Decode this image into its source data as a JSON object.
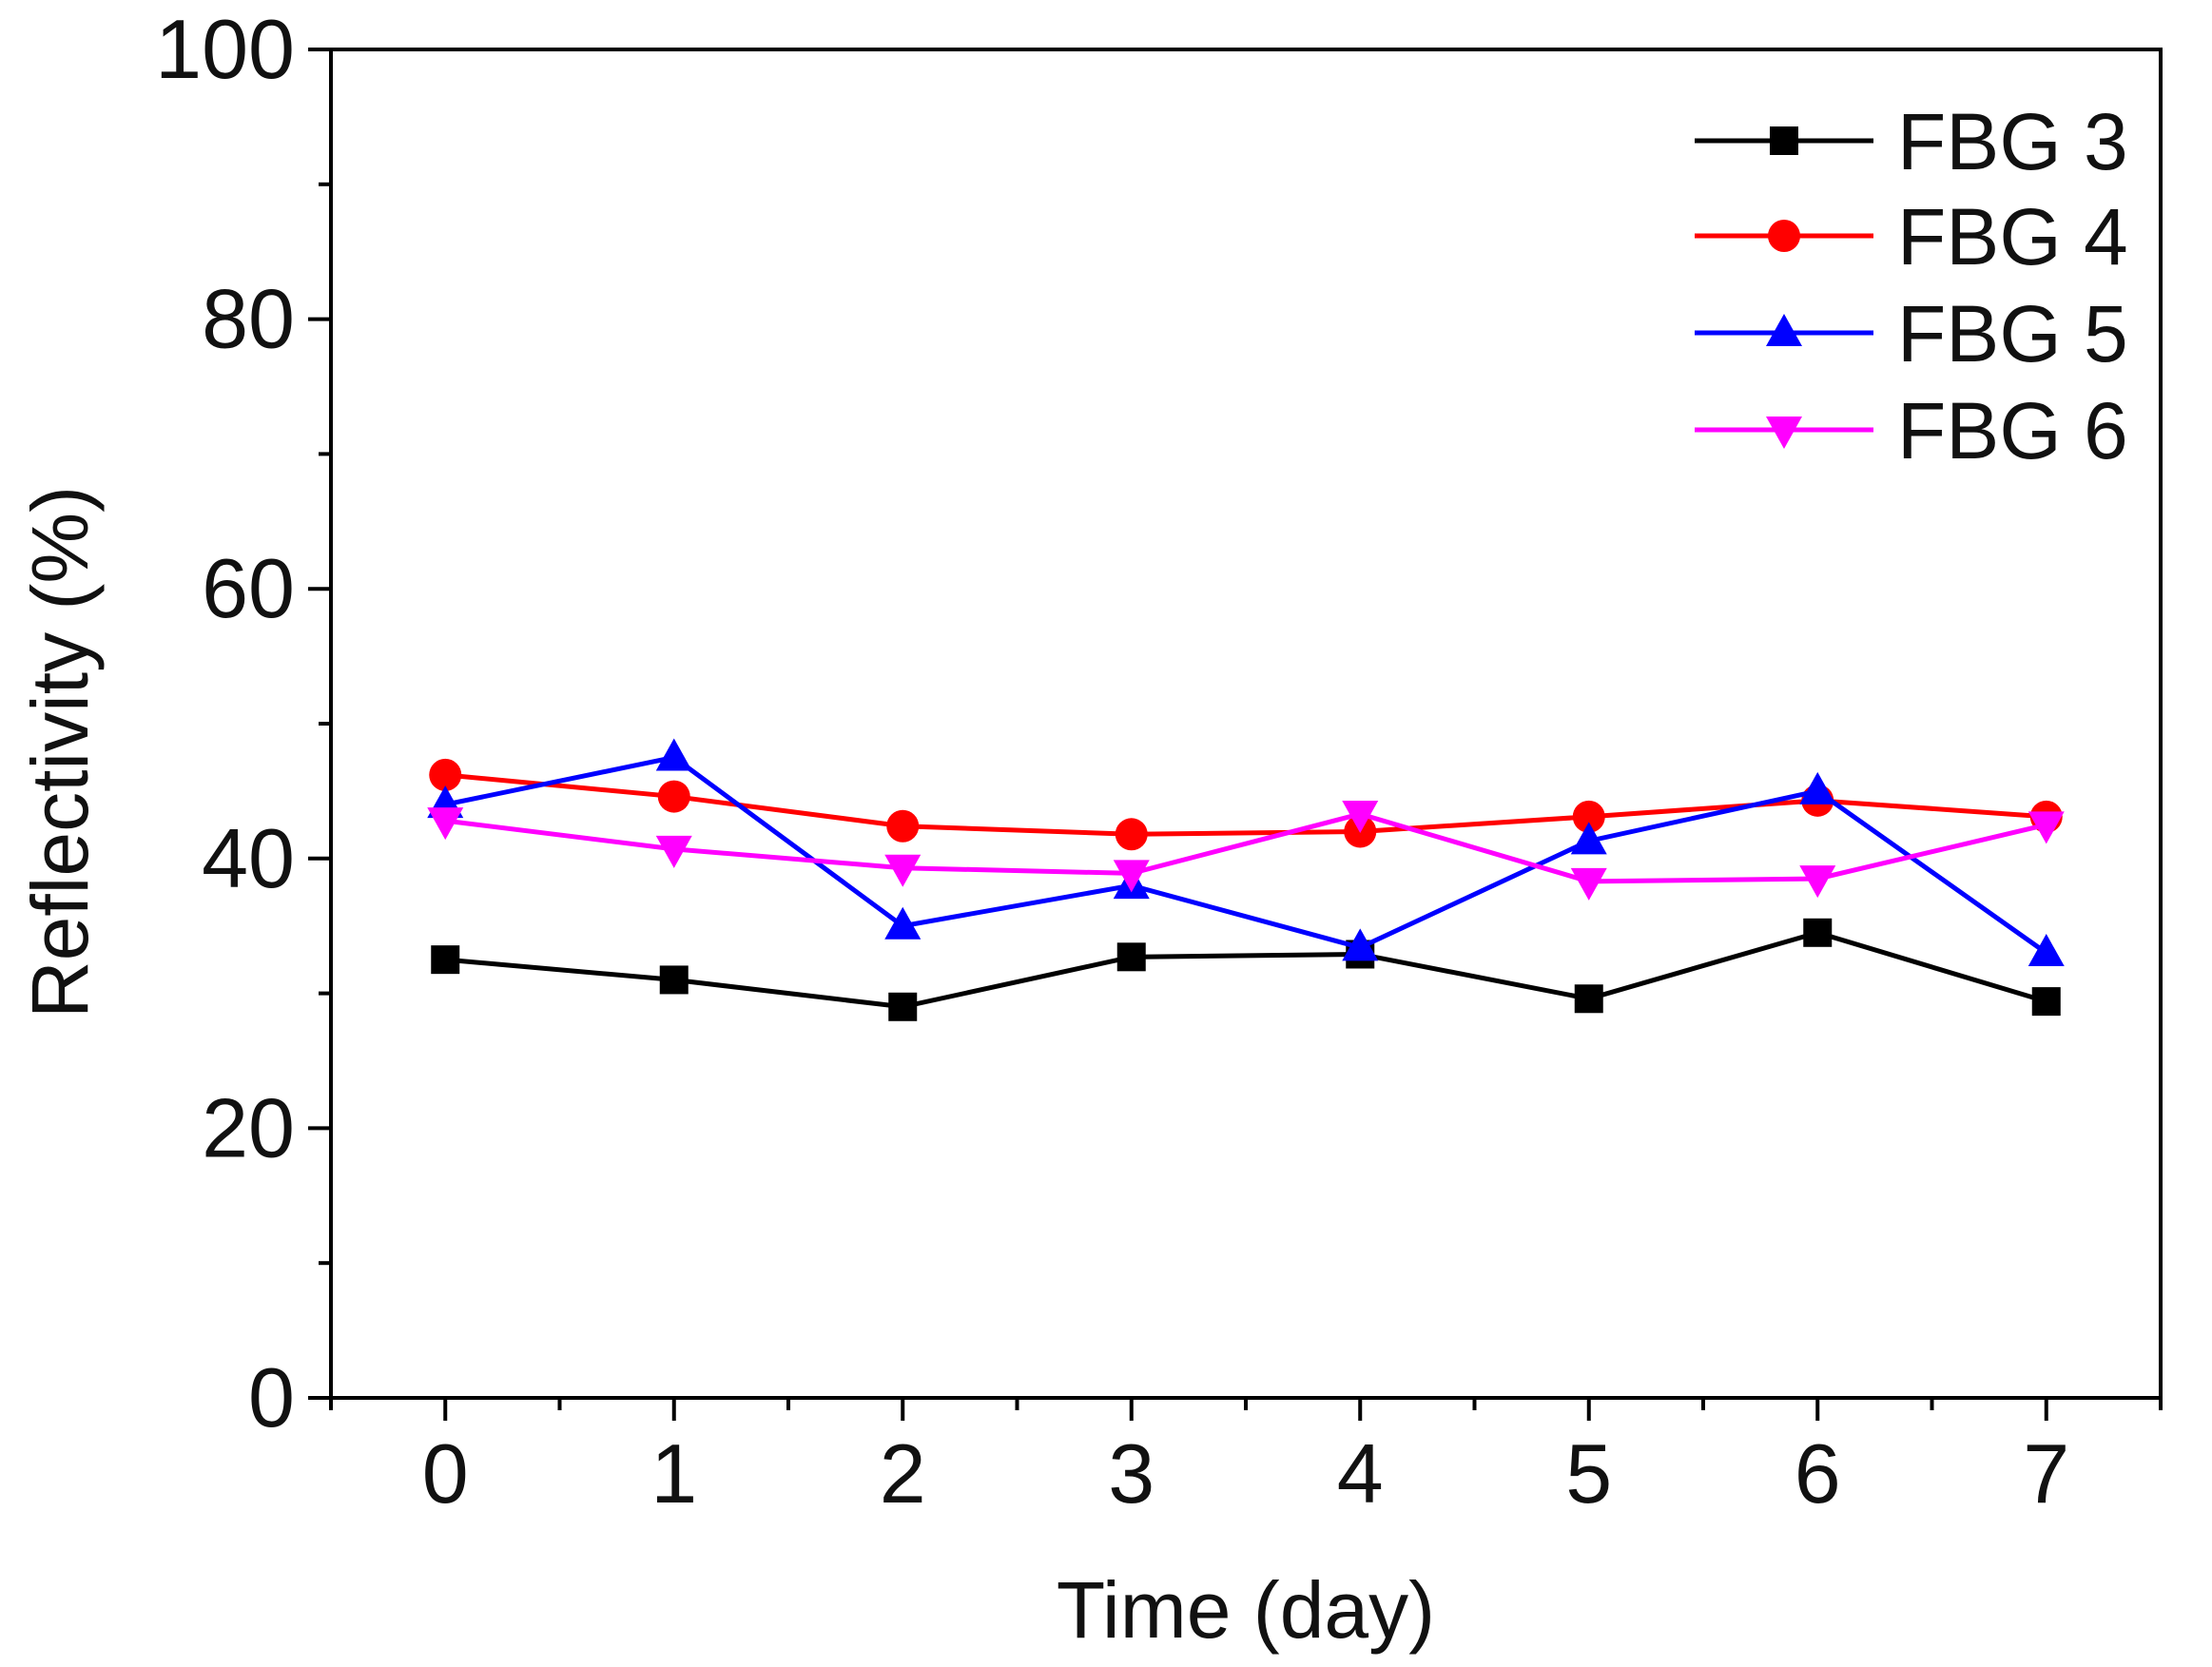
{
  "chart_data": {
    "type": "line",
    "title": "",
    "xlabel": "Time (day)",
    "ylabel": "Reflectivity (%)",
    "xlim": [
      -0.5,
      7.5
    ],
    "ylim": [
      0,
      100
    ],
    "x": [
      0,
      1,
      2,
      3,
      4,
      5,
      6,
      7
    ],
    "xticks": [
      "0",
      "1",
      "2",
      "3",
      "4",
      "5",
      "6",
      "7"
    ],
    "yticks": [
      "0",
      "20",
      "40",
      "60",
      "80",
      "100"
    ],
    "grid": false,
    "legend_position": "top-right",
    "series": [
      {
        "name": "FBG 3",
        "color": "#000000",
        "marker": "square",
        "values": [
          32.5,
          31.0,
          29.0,
          32.7,
          32.9,
          29.6,
          34.5,
          29.4
        ]
      },
      {
        "name": "FBG 4",
        "color": "#ff0000",
        "marker": "circle",
        "values": [
          46.2,
          44.6,
          42.4,
          41.8,
          42.0,
          43.1,
          44.3,
          43.1
        ]
      },
      {
        "name": "FBG 5",
        "color": "#0000ff",
        "marker": "triangle-up",
        "values": [
          44.0,
          47.5,
          35.0,
          38.0,
          33.4,
          41.3,
          45.0,
          33.0
        ]
      },
      {
        "name": "FBG 6",
        "color": "#ff00ff",
        "marker": "triangle-down",
        "values": [
          42.8,
          40.7,
          39.3,
          38.9,
          43.3,
          38.3,
          38.5,
          42.5
        ]
      }
    ]
  }
}
